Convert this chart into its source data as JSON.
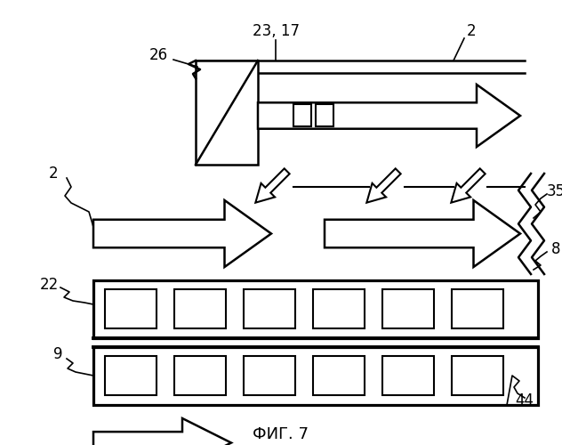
{
  "fig_label": "ФИГ. 7",
  "bg_color": "#ffffff",
  "line_color": "#000000",
  "lw": 1.8,
  "fig_w": 6.32,
  "fig_h": 5.0
}
